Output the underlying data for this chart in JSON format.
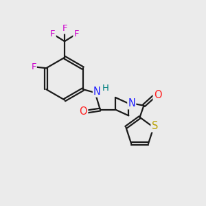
{
  "background_color": "#ebebeb",
  "bond_color": "#1a1a1a",
  "N_color": "#2020ff",
  "O_color": "#ff2020",
  "S_color": "#b8a000",
  "F_color": "#cc00cc",
  "H_color": "#008080",
  "lw": 1.6,
  "figsize": [
    3.0,
    3.0
  ],
  "dpi": 100,
  "xlim": [
    0,
    10
  ],
  "ylim": [
    0,
    10
  ]
}
